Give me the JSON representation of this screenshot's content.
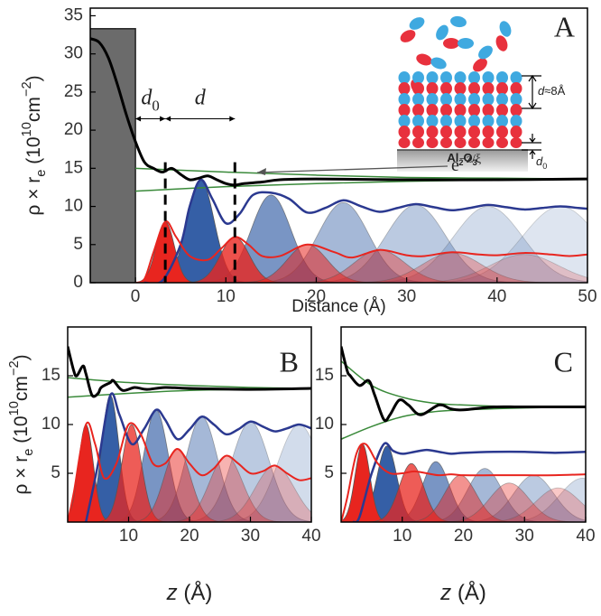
{
  "chart_data": [
    {
      "type": "line",
      "panel_label": "A",
      "xlabel": [
        {
          "text": "Distance (Å)"
        }
      ],
      "ylabel": [
        {
          "text": "ρ × r"
        },
        {
          "text": "e",
          "shift": "sub"
        },
        {
          "text": " (10"
        },
        {
          "text": "10",
          "shift": "super"
        },
        {
          "text": "cm"
        },
        {
          "text": "−2",
          "shift": "super"
        },
        {
          "text": ")"
        }
      ],
      "xlim": [
        -5,
        50
      ],
      "ylim": [
        0,
        36
      ],
      "xticks": [
        0,
        10,
        20,
        30,
        40,
        50
      ],
      "yticks": [
        0,
        5,
        10,
        15,
        20,
        25,
        30,
        35
      ],
      "substrate": {
        "x": [
          -5,
          0
        ],
        "height": 33.3,
        "color": "#6b6b6b"
      },
      "markers": [
        3.3,
        11
      ],
      "marker_top": 15.8,
      "span_y": 21.5,
      "annotations": {
        "d0": [
          {
            "text": "d",
            "italic": true
          },
          {
            "text": "0",
            "shift": "sub"
          }
        ],
        "d": [
          {
            "text": "d",
            "italic": true
          }
        ],
        "decay": [
          {
            "text": "e"
          },
          {
            "text": "−z/ξ",
            "shift": "super"
          }
        ],
        "inset_spacing": [
          {
            "text": "d",
            "italic": true
          },
          {
            "text": "≈8Å"
          }
        ],
        "inset_d0": [
          {
            "text": "d",
            "italic": true
          },
          {
            "text": "0",
            "shift": "sub"
          }
        ],
        "substrate_label": [
          {
            "text": "Al"
          },
          {
            "text": "2",
            "shift": "sub"
          },
          {
            "text": "O"
          },
          {
            "text": "3",
            "shift": "sub"
          }
        ]
      },
      "peaks": [
        {
          "color": "#1f4e9c",
          "center": [
            7.2,
            15,
            23,
            31,
            39,
            47
          ],
          "height": [
            13.5,
            11.5,
            10.5,
            10.2,
            10,
            10
          ],
          "width": [
            1.5,
            2.2,
            2.8,
            3.3,
            3.8,
            4.2
          ],
          "opacity": [
            0.9,
            0.6,
            0.4,
            0.3,
            0.2,
            0.15
          ]
        },
        {
          "color": "#e8251f",
          "center": [
            3.3,
            11,
            19,
            27,
            35,
            43
          ],
          "height": [
            8,
            6,
            5,
            4.3,
            3.9,
            3.7
          ],
          "width": [
            1.0,
            1.6,
            2.2,
            2.8,
            3.3,
            3.8
          ],
          "opacity": [
            1,
            0.8,
            0.55,
            0.4,
            0.3,
            0.2
          ]
        }
      ],
      "series": [
        {
          "color": "#3a8a3a",
          "width": 1.5,
          "x": [
            0,
            10,
            20,
            30,
            40,
            50
          ],
          "values": [
            15,
            14.5,
            14.1,
            13.8,
            13.7,
            13.6
          ]
        },
        {
          "color": "#3a8a3a",
          "width": 1.5,
          "x": [
            0,
            10,
            20,
            30,
            40,
            50
          ],
          "values": [
            12,
            12.6,
            13,
            13.3,
            13.5,
            13.6
          ]
        },
        {
          "color": "#2b3990",
          "width": 2.5,
          "x": [
            1,
            3,
            5,
            6,
            7.2,
            8.5,
            10,
            11.5,
            13,
            15,
            17,
            19,
            21,
            23,
            25,
            27,
            29,
            31,
            33,
            35,
            37,
            39,
            41,
            43,
            45,
            47,
            49,
            50
          ],
          "values": [
            0,
            0.3,
            5,
            10,
            13.5,
            11,
            7.8,
            9,
            11.5,
            11.8,
            11,
            9.2,
            9.8,
            10.8,
            10,
            9.3,
            9.8,
            10.3,
            9.9,
            9.5,
            9.8,
            10.2,
            9.9,
            9.6,
            9.8,
            10,
            9.8,
            9.7
          ]
        },
        {
          "color": "#e8251f",
          "width": 2,
          "x": [
            0,
            1,
            2,
            3.3,
            4.5,
            6,
            8,
            9.5,
            11,
            12.5,
            14,
            16,
            19,
            22,
            24,
            27,
            30,
            32,
            35,
            38,
            40,
            43,
            46,
            48,
            50
          ],
          "values": [
            0,
            0.5,
            4,
            8,
            6,
            3.5,
            3,
            4.5,
            6,
            5,
            3.5,
            3.5,
            5,
            4,
            3.3,
            4.3,
            3.6,
            3.5,
            4,
            3.7,
            3.6,
            3.9,
            3.7,
            3.5,
            3.7
          ]
        },
        {
          "color": "#000000",
          "width": 3,
          "x": [
            -5,
            -4,
            -3,
            -2,
            -1,
            0,
            1,
            2,
            3,
            4,
            5,
            6,
            7,
            8,
            9,
            10,
            11,
            12,
            14,
            16,
            20,
            30,
            40,
            50
          ],
          "values": [
            32,
            31.5,
            29.5,
            26,
            22,
            18.5,
            15.8,
            15,
            14.5,
            15,
            14.2,
            13.5,
            13.7,
            14,
            13.5,
            13,
            12.8,
            13,
            13.2,
            13.5,
            13.6,
            13.5,
            13.5,
            13.6
          ]
        }
      ]
    },
    {
      "type": "line",
      "panel_label": "B",
      "xlabel": [
        {
          "text": "z",
          "italic": true
        },
        {
          "text": " (Å)"
        }
      ],
      "ylabel": [
        {
          "text": "ρ × r"
        },
        {
          "text": "e",
          "shift": "sub"
        },
        {
          "text": " (10"
        },
        {
          "text": "10",
          "shift": "super"
        },
        {
          "text": "cm"
        },
        {
          "text": "−2",
          "shift": "super"
        },
        {
          "text": ")"
        }
      ],
      "xlim": [
        0,
        40
      ],
      "ylim": [
        0,
        20
      ],
      "xticks": [
        10,
        20,
        30,
        40
      ],
      "yticks": [
        5,
        10,
        15
      ],
      "peaks": [
        {
          "color": "#1f4e9c",
          "center": [
            7,
            14.5,
            22,
            30,
            38
          ],
          "height": [
            13,
            11.5,
            10.8,
            10.3,
            10
          ],
          "width": [
            1.4,
            2,
            2.6,
            3.1,
            3.5
          ],
          "opacity": [
            0.9,
            0.6,
            0.4,
            0.3,
            0.2
          ]
        },
        {
          "color": "#e8251f",
          "center": [
            3,
            10.5,
            18,
            26,
            34
          ],
          "height": [
            10,
            10,
            7.5,
            6.8,
            5.8
          ],
          "width": [
            1.2,
            1.6,
            2.2,
            2.7,
            3.2
          ],
          "opacity": [
            1,
            0.75,
            0.5,
            0.35,
            0.25
          ]
        }
      ],
      "series": [
        {
          "color": "#3a8a3a",
          "width": 1.5,
          "x": [
            0,
            10,
            20,
            30,
            40
          ],
          "values": [
            14.8,
            14.3,
            14,
            13.8,
            13.7
          ]
        },
        {
          "color": "#3a8a3a",
          "width": 1.5,
          "x": [
            0,
            10,
            20,
            30,
            40
          ],
          "values": [
            12.8,
            13.2,
            13.5,
            13.6,
            13.7
          ]
        },
        {
          "color": "#2b3990",
          "width": 2.5,
          "x": [
            3,
            5,
            7,
            8.5,
            10.5,
            12.5,
            14.5,
            16,
            18,
            20,
            22,
            24,
            26,
            28,
            30,
            32,
            34,
            36,
            38,
            40
          ],
          "values": [
            0,
            6,
            13,
            11,
            8,
            9.5,
            11.5,
            10.5,
            8.5,
            9.5,
            10.8,
            10,
            9,
            9.5,
            10.3,
            9.8,
            9.3,
            9.6,
            10,
            9.6
          ]
        },
        {
          "color": "#e8251f",
          "width": 2,
          "x": [
            0,
            1,
            3,
            4.5,
            6,
            8,
            10,
            12,
            14,
            16,
            18,
            20,
            22,
            24,
            26,
            28,
            30,
            32,
            34,
            36,
            38,
            40
          ],
          "values": [
            0,
            3,
            10,
            8,
            4.5,
            6,
            10,
            9,
            6,
            6,
            7.5,
            6,
            4.8,
            5.5,
            6.8,
            6,
            5,
            5.2,
            5.8,
            5,
            4.3,
            4.5
          ]
        },
        {
          "color": "#000000",
          "width": 3,
          "x": [
            0,
            1,
            1.5,
            2.5,
            3,
            4,
            5,
            5.5,
            7,
            7.5,
            9,
            11,
            13,
            16,
            20,
            30,
            40
          ],
          "values": [
            18,
            15.5,
            15,
            16,
            15.2,
            13,
            13.2,
            13.8,
            14.3,
            14.5,
            13.5,
            13.8,
            13.6,
            13.8,
            13.7,
            13.6,
            13.7
          ]
        }
      ]
    },
    {
      "type": "line",
      "panel_label": "C",
      "xlabel": [
        {
          "text": "z",
          "italic": true
        },
        {
          "text": " (Å)"
        }
      ],
      "xlim": [
        0,
        40
      ],
      "ylim": [
        0,
        20
      ],
      "xticks": [
        10,
        20,
        30,
        40
      ],
      "yticks": [
        5,
        10,
        15
      ],
      "peaks": [
        {
          "color": "#1f4e9c",
          "center": [
            7.5,
            15.5,
            23.5,
            31.5,
            39.5
          ],
          "height": [
            7.8,
            6.2,
            5.5,
            4.8,
            4.5
          ],
          "width": [
            1.6,
            2.2,
            2.8,
            3.3,
            3.8
          ],
          "opacity": [
            0.9,
            0.6,
            0.4,
            0.3,
            0.2
          ]
        },
        {
          "color": "#e8251f",
          "center": [
            3.5,
            11.5,
            19.5,
            27.5,
            35.5
          ],
          "height": [
            8,
            6,
            4.8,
            4,
            3.5
          ],
          "width": [
            1.2,
            2,
            2.6,
            3.2,
            3.6
          ],
          "opacity": [
            1,
            0.75,
            0.5,
            0.35,
            0.25
          ]
        }
      ],
      "series": [
        {
          "color": "#3a8a3a",
          "width": 1.5,
          "x": [
            0,
            5,
            10,
            15,
            20,
            30,
            40
          ],
          "values": [
            16.5,
            14,
            12.8,
            12.2,
            12,
            11.8,
            11.8
          ]
        },
        {
          "color": "#3a8a3a",
          "width": 1.5,
          "x": [
            0,
            5,
            10,
            15,
            20,
            30,
            40
          ],
          "values": [
            8.5,
            9.8,
            10.8,
            11.3,
            11.5,
            11.7,
            11.8
          ]
        },
        {
          "color": "#2b3990",
          "width": 2.5,
          "x": [
            2,
            3,
            5,
            7,
            8.5,
            10,
            12,
            14,
            16,
            18,
            20,
            25,
            30,
            35,
            40
          ],
          "values": [
            0,
            0.5,
            5,
            8,
            7.3,
            7,
            7.2,
            7.4,
            7.2,
            7,
            7.1,
            7.2,
            7.2,
            7.1,
            7.2
          ]
        },
        {
          "color": "#e8251f",
          "width": 2,
          "x": [
            0,
            1,
            2.5,
            4,
            6,
            8,
            10,
            12,
            14,
            16,
            18,
            20,
            25,
            30,
            35,
            40
          ],
          "values": [
            0,
            2.5,
            7,
            8,
            6,
            5,
            5,
            5.2,
            5,
            4.8,
            4.9,
            4.8,
            4.8,
            4.8,
            4.8,
            4.9
          ]
        },
        {
          "color": "#000000",
          "width": 3,
          "x": [
            0,
            1,
            1.5,
            3,
            4.5,
            5.5,
            7,
            8,
            9.5,
            11,
            13,
            16,
            18,
            20,
            25,
            30,
            40
          ],
          "values": [
            18,
            15.5,
            15,
            14,
            14.5,
            13,
            10.5,
            11,
            12.5,
            12,
            11,
            12,
            11.6,
            11.5,
            11.8,
            11.8,
            11.8
          ]
        }
      ]
    }
  ]
}
